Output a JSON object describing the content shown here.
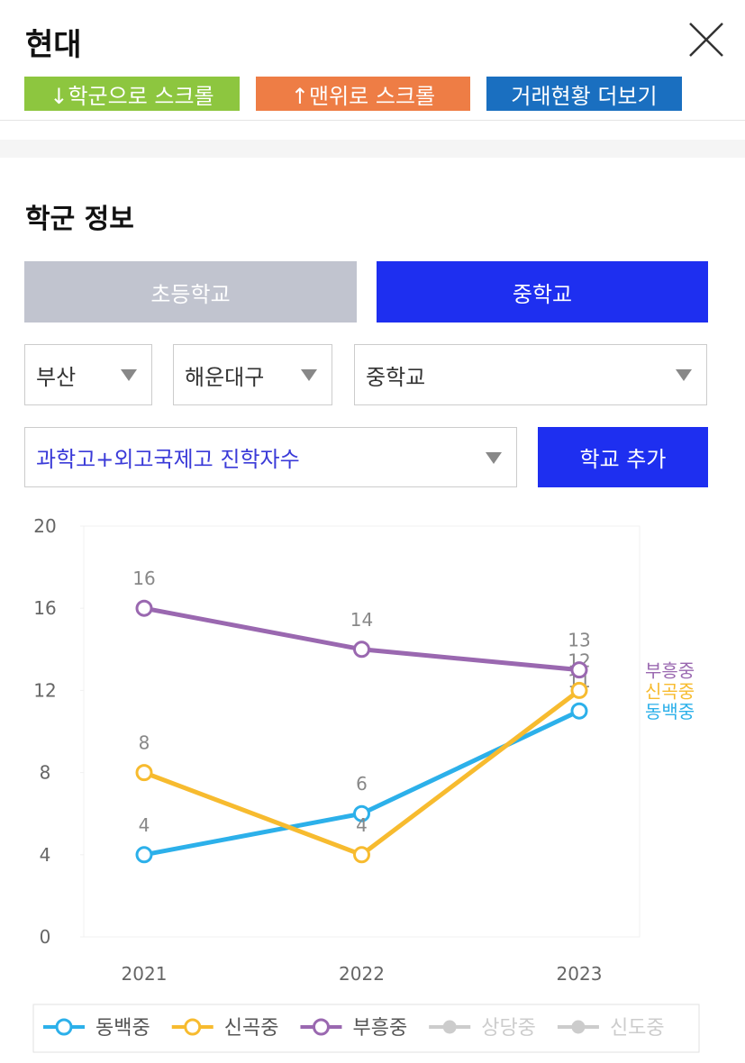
{
  "header": {
    "title": "현대",
    "buttons": [
      "↓학군으로 스크롤",
      "↑맨위로 스크롤",
      "거래현황 더보기"
    ]
  },
  "section_title": "학군 정보",
  "tabs": [
    "초등학교",
    "중학교"
  ],
  "selects": [
    "부산",
    "해운대구",
    "중학교",
    "과학고+외고국제고 진학자수"
  ],
  "add_button": "학교 추가",
  "chart_data": {
    "type": "line",
    "categories": [
      "2021",
      "2022",
      "2023"
    ],
    "series": [
      {
        "name": "동백중",
        "color": "#2cb0ea",
        "values": [
          4,
          6,
          11
        ]
      },
      {
        "name": "신곡중",
        "color": "#f7bb2f",
        "values": [
          8,
          4,
          12
        ]
      },
      {
        "name": "부흥중",
        "color": "#9a68b0",
        "values": [
          16,
          14,
          13
        ]
      },
      {
        "name": "상당중",
        "color": "#cccccc",
        "values": [
          null,
          null,
          null
        ],
        "hidden": true
      },
      {
        "name": "신도중",
        "color": "#cccccc",
        "values": [
          null,
          null,
          null
        ],
        "hidden": true
      }
    ],
    "ylim": [
      0,
      20
    ],
    "yticks": [
      0,
      4,
      8,
      12,
      16,
      20
    ],
    "data_labels": true,
    "legend": "bottom"
  }
}
